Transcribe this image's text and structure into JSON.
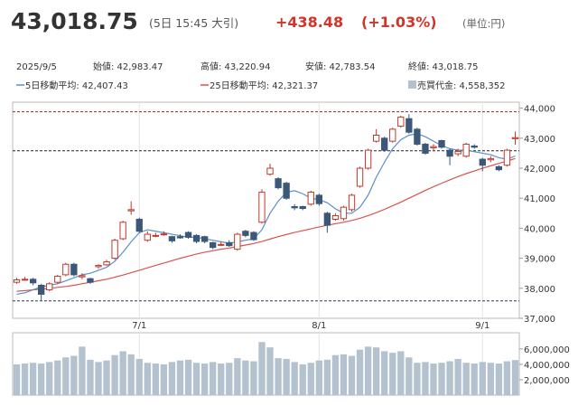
{
  "header": {
    "price": "43,018.75",
    "time": "(5日 15:45 大引)",
    "change": "+438.48",
    "change_pct": "(+1.03%)",
    "unit": "(単位:円)"
  },
  "info": {
    "date": "2025/9/5",
    "stats": [
      "始値: 42,983.47",
      "高値: 43,220.94",
      "安値: 42,783.54",
      "終値: 43,018.75"
    ]
  },
  "legend": [
    "5日移動平均: 42,407.43",
    "25日移動平均: 42,321.37",
    "売買代金: 4,558,352"
  ],
  "chart_data": {
    "type": "candlestick",
    "xlim": [
      -0.5,
      61.5
    ],
    "xticks": [
      {
        "value": 15,
        "label": "7/1"
      },
      {
        "value": 37,
        "label": "8/1"
      },
      {
        "value": 57,
        "label": "9/1"
      }
    ],
    "ylim": [
      37000,
      44200
    ],
    "yticks": [
      {
        "value": 37000,
        "label": "37,000"
      },
      {
        "value": 38000,
        "label": "38,000"
      },
      {
        "value": 39000,
        "label": "39,000"
      },
      {
        "value": 40000,
        "label": "40,000"
      },
      {
        "value": 41000,
        "label": "41,000"
      },
      {
        "value": 42000,
        "label": "42,000"
      },
      {
        "value": 43000,
        "label": "43,000"
      },
      {
        "value": 44000,
        "label": "44,000"
      }
    ],
    "grid": false,
    "up_color": "#c0392b",
    "down_color": "#3b5878",
    "reference_lines": [
      43880,
      42580,
      37580
    ],
    "reference_colors": [
      "#8b2a2a",
      "#222222",
      "#2c3e50"
    ],
    "open": [
      38200,
      38290,
      38300,
      38100,
      37950,
      38200,
      38450,
      38800,
      38380,
      38320,
      38720,
      38780,
      39000,
      39650,
      40580,
      40300,
      39600,
      39740,
      39790,
      39720,
      39720,
      39860,
      39760,
      39720,
      39520,
      39440,
      39520,
      39300,
      39900,
      39860,
      40200,
      41800,
      41650,
      41500,
      40720,
      40720,
      40800,
      41100,
      40500,
      40300,
      40320,
      40620,
      41400,
      42000,
      42900,
      43000,
      42900,
      43400,
      43650,
      43300,
      42800,
      42680,
      42920,
      42600,
      42480,
      42400,
      42740,
      42300,
      42280,
      42050,
      42100,
      42983.47
    ],
    "close": [
      38280,
      38300,
      38180,
      37800,
      38150,
      38400,
      38800,
      38450,
      38420,
      38200,
      38760,
      38880,
      39600,
      40200,
      40620,
      39900,
      39800,
      39760,
      39810,
      39580,
      39680,
      39700,
      39560,
      39560,
      39360,
      39460,
      39420,
      39800,
      39760,
      39620,
      41200,
      42000,
      41350,
      41000,
      40680,
      40660,
      41200,
      40820,
      40100,
      40420,
      40700,
      41100,
      42000,
      42600,
      43100,
      42600,
      43300,
      43700,
      43200,
      42800,
      42500,
      42720,
      42700,
      42400,
      42560,
      42800,
      42700,
      42100,
      42320,
      41950,
      42600,
      43018.75
    ],
    "high": [
      38350,
      38380,
      38350,
      38150,
      38200,
      38450,
      38850,
      38850,
      38500,
      38350,
      38800,
      38950,
      39650,
      40250,
      40900,
      40350,
      39900,
      39850,
      39900,
      39750,
      39800,
      39900,
      39800,
      39750,
      39550,
      39550,
      39600,
      39850,
      39950,
      39900,
      41300,
      42150,
      41700,
      41550,
      40800,
      40750,
      41250,
      41150,
      40550,
      40500,
      40750,
      41150,
      42050,
      42650,
      43300,
      43050,
      43350,
      43750,
      43800,
      43350,
      42850,
      42800,
      42950,
      42650,
      42650,
      42850,
      42800,
      42350,
      42400,
      42100,
      42650,
      43220.94
    ],
    "low": [
      38150,
      38250,
      38100,
      37600,
      37900,
      38150,
      38400,
      38400,
      38300,
      38150,
      38650,
      38750,
      38950,
      39600,
      40450,
      39850,
      39550,
      39700,
      39750,
      39520,
      39650,
      39650,
      39500,
      39500,
      39300,
      39400,
      39380,
      39250,
      39700,
      39580,
      40150,
      41750,
      41300,
      40950,
      40600,
      40600,
      40750,
      40750,
      39850,
      40250,
      40250,
      40550,
      41350,
      41950,
      42850,
      42550,
      42850,
      43350,
      43150,
      42750,
      42450,
      42600,
      42650,
      42100,
      42400,
      42350,
      42650,
      41900,
      42200,
      41900,
      42050,
      42783.54
    ],
    "ma5": {
      "color": "#5b8fc9",
      "values": [
        37800,
        37850,
        37950,
        38050,
        38100,
        38150,
        38250,
        38350,
        38450,
        38500,
        38600,
        38700,
        38900,
        39200,
        39550,
        39850,
        39950,
        39900,
        39850,
        39800,
        39750,
        39700,
        39700,
        39650,
        39600,
        39550,
        39500,
        39550,
        39600,
        39650,
        39950,
        40500,
        40900,
        41200,
        41250,
        41150,
        41000,
        40950,
        40850,
        40650,
        40500,
        40500,
        40700,
        41100,
        41700,
        42200,
        42650,
        42950,
        43100,
        43150,
        43050,
        42900,
        42750,
        42650,
        42600,
        42600,
        42550,
        42500,
        42450,
        42350,
        42300,
        42407.43
      ]
    },
    "ma25": {
      "color": "#d9534f",
      "values": [
        37900,
        37920,
        37950,
        37970,
        38000,
        38030,
        38060,
        38100,
        38150,
        38200,
        38250,
        38300,
        38370,
        38440,
        38520,
        38600,
        38680,
        38760,
        38840,
        38920,
        39000,
        39070,
        39140,
        39200,
        39250,
        39300,
        39340,
        39390,
        39440,
        39490,
        39560,
        39640,
        39720,
        39790,
        39860,
        39920,
        39980,
        40040,
        40100,
        40150,
        40200,
        40260,
        40330,
        40420,
        40520,
        40630,
        40750,
        40870,
        41000,
        41130,
        41260,
        41380,
        41500,
        41610,
        41720,
        41820,
        41910,
        42000,
        42080,
        42160,
        42240,
        42321.37
      ]
    },
    "volume": {
      "color": "#b3c2ce",
      "ylim": [
        0,
        8100000
      ],
      "yticks": [
        {
          "value": 2000000,
          "label": "2,000,000"
        },
        {
          "value": 4000000,
          "label": "4,000,000"
        },
        {
          "value": 6000000,
          "label": "6,000,000"
        }
      ],
      "values": [
        4000000,
        4100000,
        4200000,
        4100000,
        4300000,
        4500000,
        4900000,
        5100000,
        6300000,
        4600000,
        4300000,
        4500000,
        5200000,
        5700000,
        5300000,
        4700000,
        4200000,
        4100000,
        4000000,
        4300000,
        4500000,
        4600000,
        4200000,
        4100000,
        4300000,
        4100000,
        4200000,
        4800000,
        4500000,
        4400000,
        6900000,
        6200000,
        4800000,
        4700000,
        4300000,
        4000000,
        4200000,
        4500000,
        4600000,
        5200000,
        5300000,
        5100000,
        5900000,
        6300000,
        6200000,
        5700000,
        5500000,
        5700000,
        4900000,
        4200000,
        4300000,
        4100000,
        4200000,
        4400000,
        4700000,
        4200000,
        4100000,
        4300000,
        4200000,
        4100000,
        4400000,
        4558352
      ]
    }
  }
}
